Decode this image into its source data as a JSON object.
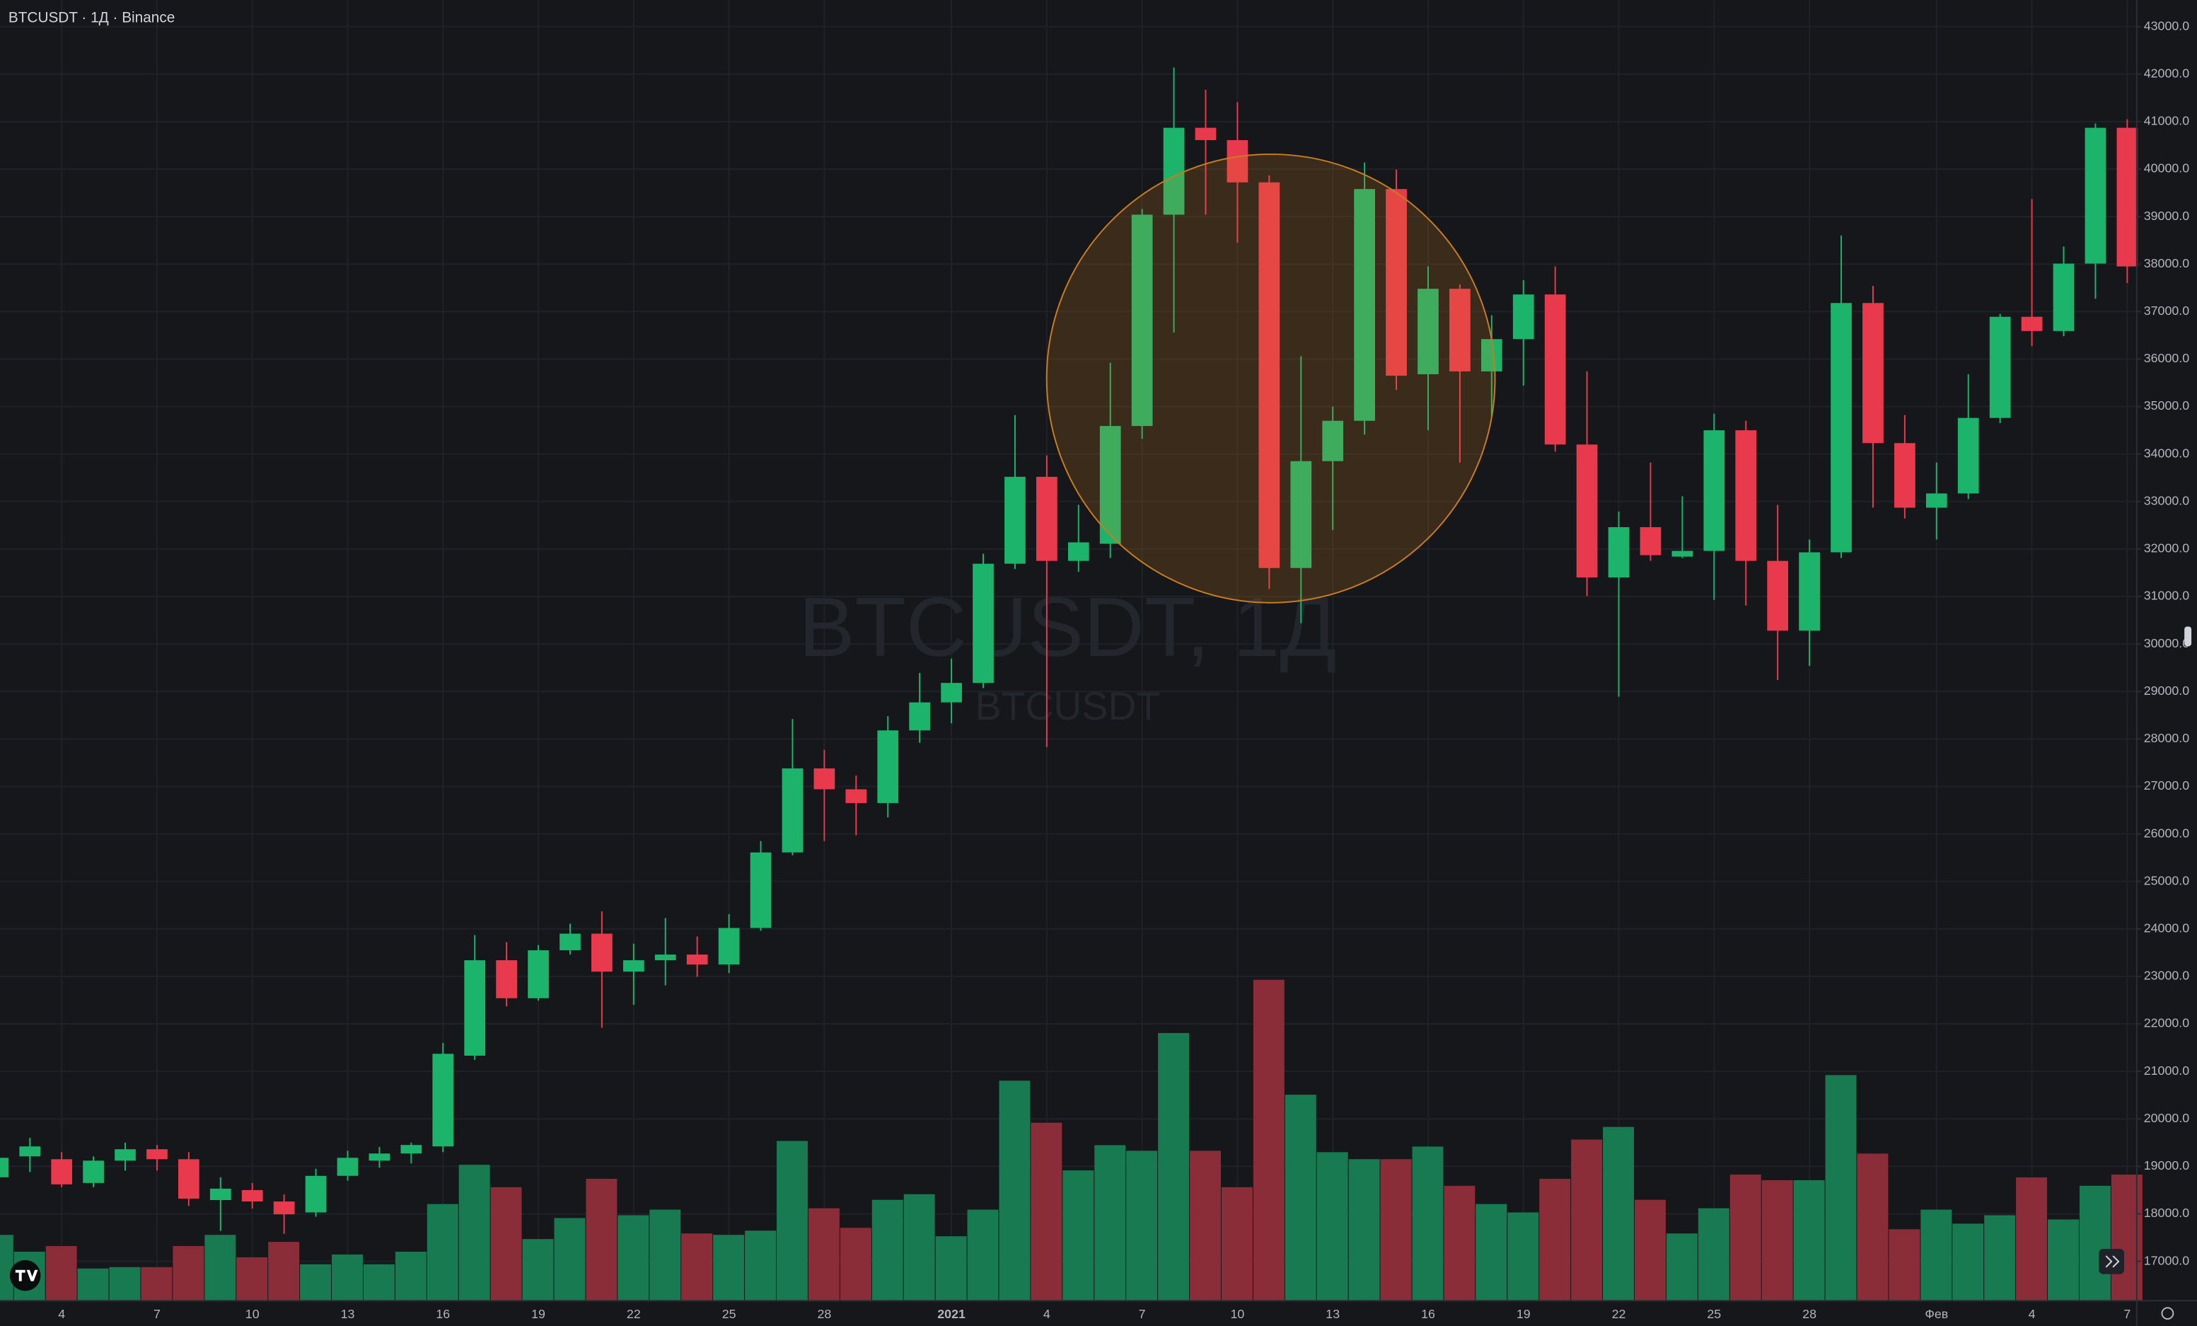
{
  "chart_data": {
    "type": "candlestick",
    "title": "BTCUSDT · 1Д · Binance",
    "watermark": "BTCUSDT, 1Д",
    "watermark_subtitle": "BTCUSDT",
    "up_color": "#1cb36b",
    "down_color": "#e8394d",
    "volume_up_color": "#177a50",
    "volume_down_color": "#8a2d38",
    "grid": true,
    "categories": [
      null,
      null,
      "4",
      null,
      null,
      "7",
      null,
      null,
      "10",
      null,
      null,
      "13",
      null,
      null,
      "16",
      null,
      null,
      "19",
      null,
      null,
      "22",
      null,
      null,
      "25",
      null,
      null,
      "28",
      null,
      null,
      null,
      "2021",
      null,
      null,
      "4",
      null,
      null,
      "7",
      null,
      null,
      "10",
      null,
      null,
      "13",
      null,
      null,
      "16",
      null,
      null,
      "19",
      null,
      null,
      "22",
      null,
      null,
      "25",
      null,
      null,
      "28",
      null,
      null,
      null,
      "Фев",
      null,
      null,
      "4",
      null,
      null,
      "7"
    ],
    "open": [
      18770,
      19210,
      19150,
      18650,
      19120,
      19360,
      19150,
      18290,
      18500,
      18260,
      18030,
      18800,
      19120,
      19270,
      19420,
      21330,
      23340,
      22540,
      23550,
      23900,
      23100,
      23340,
      23460,
      23250,
      24020,
      25610,
      27380,
      26940,
      26650,
      28180,
      28770,
      29180,
      31690,
      33520,
      31750,
      32110,
      34590,
      39040,
      40870,
      40610,
      39720,
      31600,
      33850,
      34700,
      39580,
      35680,
      37480,
      35740,
      36420,
      37360,
      34200,
      31400,
      32460,
      31840,
      31960,
      34500,
      31750,
      30280,
      31930,
      37180,
      34230,
      32870,
      33170,
      34760,
      36890,
      36590,
      38010,
      40870
    ],
    "high": [
      19360,
      19600,
      19300,
      19210,
      19500,
      19450,
      19300,
      18770,
      18650,
      18410,
      18950,
      19330,
      19410,
      19500,
      21600,
      23870,
      23720,
      23660,
      24110,
      24370,
      23690,
      24230,
      23840,
      24310,
      25850,
      28420,
      27770,
      27230,
      28480,
      29390,
      29690,
      31900,
      34820,
      33970,
      32930,
      35920,
      39160,
      42140,
      41670,
      41410,
      39870,
      36060,
      35000,
      40140,
      39990,
      37950,
      37570,
      36920,
      37660,
      37950,
      35740,
      32790,
      33820,
      33110,
      34850,
      34700,
      32930,
      32200,
      38600,
      37540,
      34820,
      33820,
      35680,
      36950,
      39370,
      38370,
      40960,
      41050
    ],
    "low": [
      18620,
      18880,
      18560,
      18560,
      18910,
      18910,
      18170,
      17640,
      18110,
      17580,
      17940,
      18700,
      18970,
      19060,
      19300,
      21240,
      22370,
      22490,
      23460,
      21920,
      22400,
      22810,
      22990,
      23070,
      23960,
      25550,
      25850,
      25970,
      26350,
      27920,
      28330,
      29070,
      31580,
      27830,
      31520,
      31810,
      34320,
      36560,
      39040,
      38450,
      31160,
      30440,
      32400,
      34410,
      35350,
      34500,
      33820,
      34790,
      35440,
      34050,
      31010,
      28890,
      31750,
      31810,
      30930,
      30810,
      29240,
      29540,
      31810,
      32870,
      32640,
      32200,
      33050,
      34650,
      36270,
      36480,
      37270,
      37600
    ],
    "close": [
      19180,
      19420,
      18620,
      19120,
      19360,
      19150,
      18320,
      18530,
      18260,
      17990,
      18800,
      19180,
      19270,
      19450,
      21370,
      23340,
      22540,
      23550,
      23900,
      23100,
      23340,
      23460,
      23250,
      24020,
      25610,
      27380,
      26940,
      26650,
      28180,
      28770,
      29180,
      31690,
      33520,
      31750,
      32140,
      34590,
      39040,
      40870,
      40610,
      39720,
      31600,
      33850,
      34700,
      39580,
      35650,
      37480,
      35740,
      36420,
      37360,
      34200,
      31400,
      32460,
      31870,
      31960,
      34500,
      31750,
      30280,
      31930,
      37180,
      34230,
      32870,
      33170,
      34760,
      36890,
      36590,
      38010,
      40870,
      37950
    ],
    "volume": [
      47,
      35,
      39,
      23,
      24,
      24,
      39,
      47,
      31,
      42,
      26,
      33,
      26,
      35,
      69,
      97,
      81,
      44,
      59,
      87,
      61,
      65,
      48,
      47,
      50,
      114,
      66,
      52,
      72,
      76,
      46,
      65,
      157,
      127,
      93,
      111,
      107,
      191,
      107,
      81,
      229,
      147,
      106,
      101,
      101,
      110,
      82,
      69,
      63,
      87,
      115,
      124,
      72,
      48,
      66,
      90,
      86,
      86,
      161,
      105,
      51,
      65,
      55,
      61,
      88,
      58,
      82,
      90
    ],
    "ylim": [
      16170,
      43560
    ],
    "yticks": [
      {
        "value": 17000,
        "label": "17000.0"
      },
      {
        "value": 18000,
        "label": "18000.0"
      },
      {
        "value": 19000,
        "label": "19000.0"
      },
      {
        "value": 20000,
        "label": "20000.0"
      },
      {
        "value": 21000,
        "label": "21000.0"
      },
      {
        "value": 22000,
        "label": "22000.0"
      },
      {
        "value": 23000,
        "label": "23000.0"
      },
      {
        "value": 24000,
        "label": "24000.0"
      },
      {
        "value": 25000,
        "label": "25000.0"
      },
      {
        "value": 26000,
        "label": "26000.0"
      },
      {
        "value": 27000,
        "label": "27000.0"
      },
      {
        "value": 28000,
        "label": "28000.0"
      },
      {
        "value": 29000,
        "label": "29000.0"
      },
      {
        "value": 30000,
        "label": "30000.0"
      },
      {
        "value": 31000,
        "label": "31000.0"
      },
      {
        "value": 32000,
        "label": "32000.0"
      },
      {
        "value": 33000,
        "label": "33000.0"
      },
      {
        "value": 34000,
        "label": "34000.0"
      },
      {
        "value": 35000,
        "label": "35000.0"
      },
      {
        "value": 36000,
        "label": "36000.0"
      },
      {
        "value": 37000,
        "label": "37000.0"
      },
      {
        "value": 38000,
        "label": "38000.0"
      },
      {
        "value": 39000,
        "label": "39000.0"
      },
      {
        "value": 40000,
        "label": "40000.0"
      },
      {
        "value": 41000,
        "label": "41000.0"
      },
      {
        "value": 42000,
        "label": "42000.0"
      },
      {
        "value": 43000,
        "label": "43000.0"
      }
    ]
  }
}
